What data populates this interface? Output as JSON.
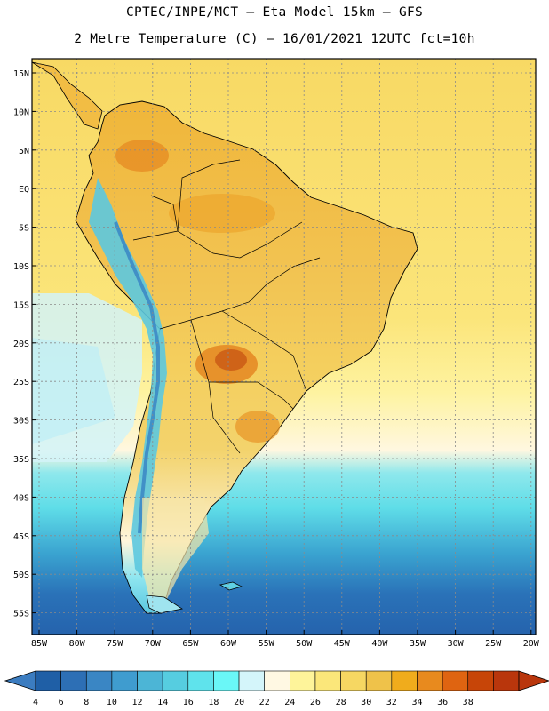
{
  "header": {
    "line1": "CPTEC/INPE/MCT –  Eta Model 15km – GFS",
    "line2": "2 Metre Temperature (C) – 16/01/2021 12UTC fct=10h"
  },
  "map": {
    "region": "South America",
    "variable": "2 Metre Temperature",
    "units": "C",
    "lat_labels": [
      "15N",
      "10N",
      "5N",
      "EQ",
      "5S",
      "10S",
      "15S",
      "20S",
      "25S",
      "30S",
      "35S",
      "40S",
      "45S",
      "50S",
      "55S"
    ],
    "lon_labels": [
      "85W",
      "80W",
      "75W",
      "70W",
      "65W",
      "60W",
      "55W",
      "50W",
      "45W",
      "40W",
      "35W",
      "30W",
      "25W",
      "20W"
    ]
  },
  "colorbar": {
    "values": [
      "4",
      "6",
      "8",
      "10",
      "12",
      "14",
      "16",
      "18",
      "20",
      "22",
      "24",
      "26",
      "28",
      "30",
      "32",
      "34",
      "36",
      "38"
    ],
    "colors": [
      "#1f5fa6",
      "#2d6fb5",
      "#3a86c4",
      "#3f9ccf",
      "#4cb5d6",
      "#56cde0",
      "#5fe3ec",
      "#6af7f7",
      "#d4f5fa",
      "#fff8e3",
      "#fef49a",
      "#fbe77a",
      "#f6d762",
      "#efc24a",
      "#f0ac1c",
      "#e88a1e",
      "#df6411",
      "#c74508",
      "#b9360c"
    ],
    "left_end_color": "#3b7cc0",
    "right_end_color": "#b9360c"
  }
}
